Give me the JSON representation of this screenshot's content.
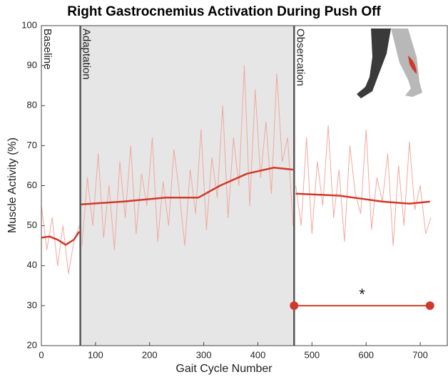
{
  "chart_data": {
    "type": "line",
    "title": "Right Gastrocnemius Activation During Push Off",
    "xlabel": "Gait Cycle Number",
    "ylabel": "Muscle Activity (%)",
    "xlim": [
      0,
      750
    ],
    "xticks": [
      0,
      100,
      200,
      300,
      400,
      500,
      600,
      700
    ],
    "ylim": [
      20,
      100
    ],
    "yticks": [
      20,
      30,
      40,
      50,
      60,
      70,
      80,
      90,
      100
    ],
    "boundaries": [
      72,
      467
    ],
    "phase_labels": [
      "Baseline",
      "Adaptation",
      "Obsercation"
    ],
    "series": [
      {
        "color": "#f2a89e",
        "x": [
          0,
          10,
          20,
          30,
          40,
          50,
          60,
          70,
          71,
          75,
          85,
          95,
          105,
          115,
          125,
          135,
          145,
          155,
          165,
          175,
          185,
          195,
          205,
          215,
          225,
          235,
          245,
          255,
          265,
          275,
          285,
          295,
          305,
          315,
          325,
          335,
          345,
          355,
          365,
          375,
          385,
          395,
          405,
          415,
          425,
          435,
          445,
          455,
          465,
          468,
          470,
          480,
          490,
          500,
          510,
          520,
          530,
          540,
          550,
          560,
          570,
          580,
          590,
          600,
          610,
          620,
          630,
          640,
          650,
          660,
          670,
          680,
          690,
          700,
          710,
          720
        ],
        "values": [
          55,
          44,
          52,
          40,
          50,
          38,
          46,
          50,
          null,
          45,
          62,
          50,
          68,
          47,
          60,
          44,
          66,
          52,
          70,
          48,
          63,
          55,
          72,
          46,
          61,
          50,
          69,
          58,
          45,
          64,
          53,
          74,
          49,
          67,
          57,
          80,
          52,
          72,
          60,
          90,
          55,
          84,
          62,
          76,
          58,
          88,
          66,
          72,
          50,
          null,
          60,
          50,
          72,
          48,
          66,
          55,
          75,
          52,
          64,
          46,
          70,
          58,
          53,
          74,
          49,
          62,
          56,
          68,
          45,
          65,
          50,
          71,
          54,
          60,
          48,
          52
        ]
      },
      {
        "color": "#d0392a",
        "x": [
          0,
          15,
          30,
          45,
          60,
          70,
          71,
          72,
          150,
          230,
          290,
          330,
          380,
          430,
          465,
          468,
          470,
          550,
          630,
          680,
          718
        ],
        "values": [
          47,
          47.3,
          46.5,
          45.2,
          46.5,
          48.5,
          null,
          55.3,
          56,
          57,
          57,
          60,
          63,
          64.5,
          64,
          null,
          58,
          57.5,
          56,
          55.5,
          56
        ]
      }
    ],
    "significance": {
      "label": "*",
      "x": [
        467,
        718
      ],
      "y": 30,
      "color": "#d0392a"
    }
  }
}
